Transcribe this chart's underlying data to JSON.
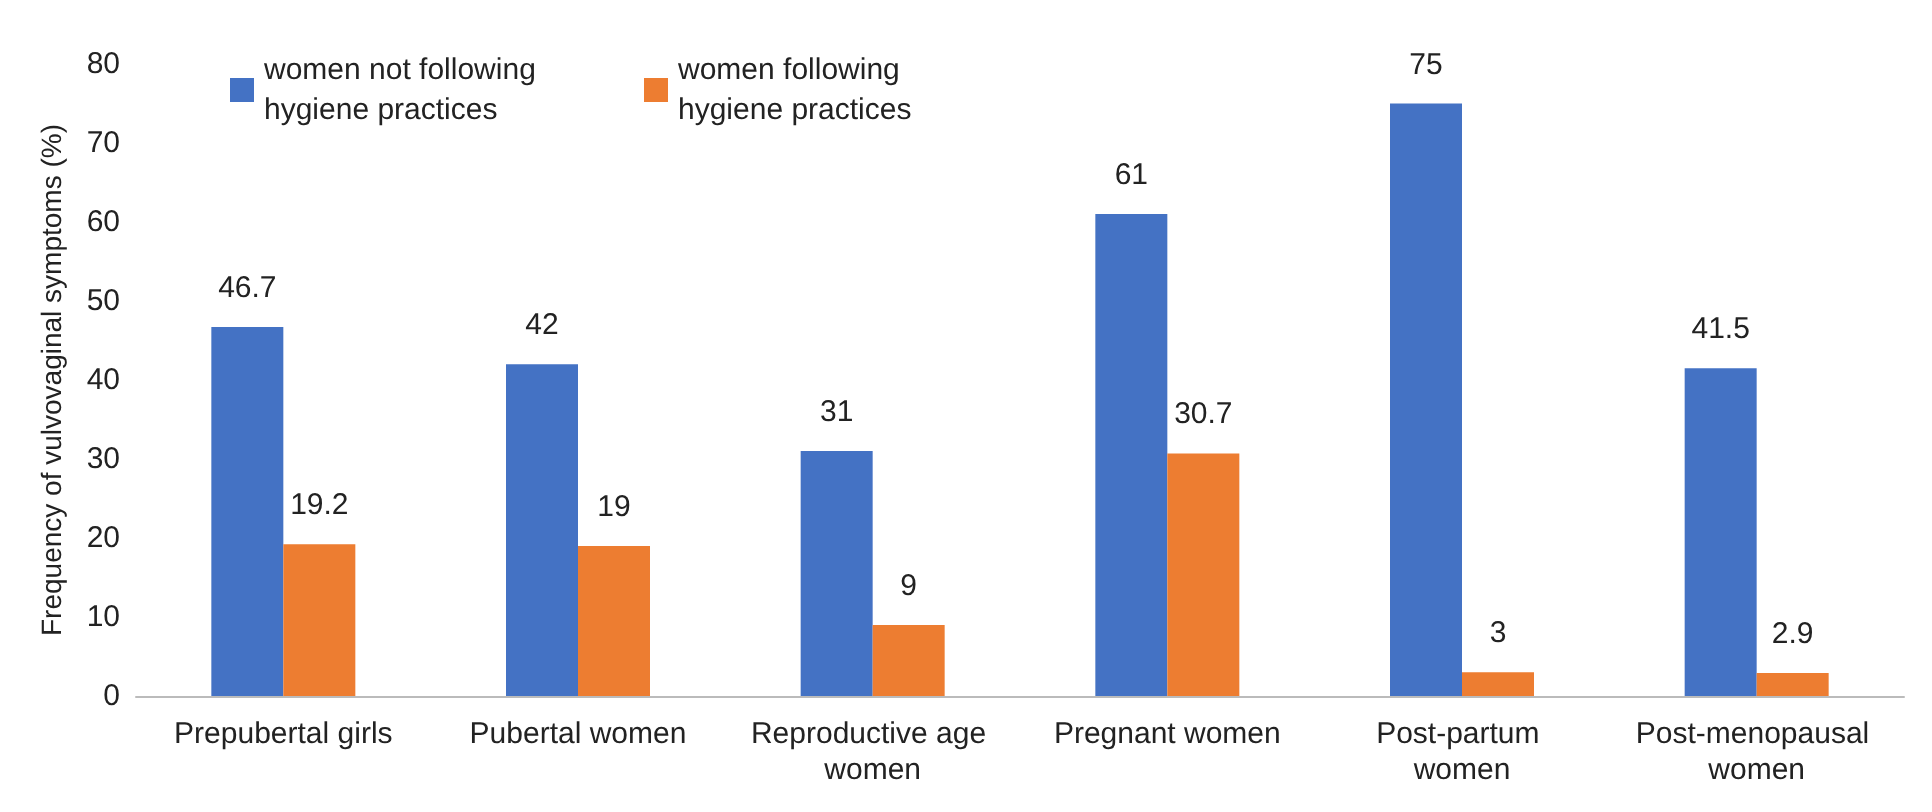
{
  "chart_data": {
    "type": "bar",
    "ylabel": "Frequency of vulvovaginal symptoms (%)",
    "categories": [
      "Prepubertal girls",
      "Pubertal women",
      "Reproductive age women",
      "Pregnant women",
      "Post-partum women",
      "Post-menopausal women"
    ],
    "series": [
      {
        "name": "women not following hygiene practices",
        "color": "#4472c4",
        "values": [
          46.7,
          42,
          31,
          61,
          75,
          41.5
        ]
      },
      {
        "name": "women following hygiene practices",
        "color": "#ed7d31",
        "values": [
          19.2,
          19,
          9,
          30.7,
          3,
          2.9
        ]
      }
    ],
    "ylim": [
      0,
      80
    ],
    "yticks": [
      0,
      10,
      20,
      30,
      40,
      50,
      60,
      70,
      80
    ],
    "grid": false,
    "legend": "top left",
    "data_labels": true
  }
}
